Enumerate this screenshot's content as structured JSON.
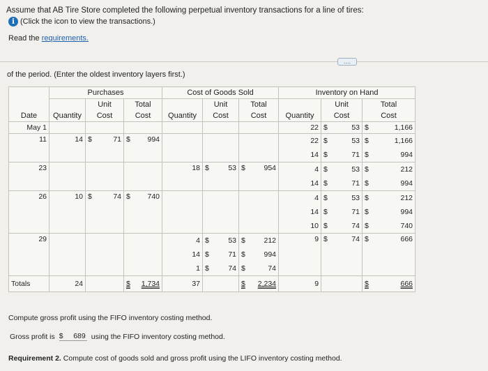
{
  "header": {
    "intro": "Assume that AB Tire Store completed the following perpetual inventory transactions for a line of tires:",
    "icon_link": "(Click the icon to view the transactions.)",
    "read_prefix": "Read the ",
    "requirements_link": "requirements."
  },
  "more_button": "....",
  "instruction": "of the period. (Enter the oldest inventory layers first.)",
  "table": {
    "groups": {
      "purchases": "Purchases",
      "cogs": "Cost of Goods Sold",
      "inventory": "Inventory on Hand"
    },
    "col": {
      "date": "Date",
      "quantity": "Quantity",
      "unit": "Unit",
      "cost": "Cost",
      "total": "Total"
    },
    "rows": {
      "may1": {
        "date": "May 1",
        "inv": [
          {
            "q": "22",
            "u": "53",
            "t": "1,166"
          }
        ]
      },
      "d11": {
        "date": "11",
        "p": {
          "q": "14",
          "u": "71",
          "t": "994"
        },
        "inv": [
          {
            "q": "22",
            "u": "53",
            "t": "1,166"
          },
          {
            "q": "14",
            "u": "71",
            "t": "994"
          }
        ]
      },
      "d23": {
        "date": "23",
        "c": [
          {
            "q": "18",
            "u": "53",
            "t": "954"
          }
        ],
        "inv": [
          {
            "q": "4",
            "u": "53",
            "t": "212"
          },
          {
            "q": "14",
            "u": "71",
            "t": "994"
          }
        ]
      },
      "d26": {
        "date": "26",
        "p": {
          "q": "10",
          "u": "74",
          "t": "740"
        },
        "inv": [
          {
            "q": "4",
            "u": "53",
            "t": "212"
          },
          {
            "q": "14",
            "u": "71",
            "t": "994"
          },
          {
            "q": "10",
            "u": "74",
            "t": "740"
          }
        ]
      },
      "d29": {
        "date": "29",
        "c": [
          {
            "q": "4",
            "u": "53",
            "t": "212"
          },
          {
            "q": "14",
            "u": "71",
            "t": "994"
          },
          {
            "q": "1",
            "u": "74",
            "t": "74"
          }
        ],
        "inv": [
          {
            "q": "9",
            "u": "74",
            "t": "666"
          }
        ]
      }
    },
    "totals": {
      "label": "Totals",
      "p_q": "24",
      "p_t": "1,734",
      "c_q": "37",
      "c_t": "2,234",
      "i_q": "9",
      "i_t": "666"
    },
    "dollar": "$"
  },
  "compute_text": "Compute gross profit using the FIFO inventory costing method.",
  "gross_profit": {
    "prefix": "Gross profit is",
    "dollar": "$",
    "value": "689",
    "suffix": "using the FIFO inventory costing method."
  },
  "req2": {
    "bold": "Requirement 2.",
    "text": " Compute cost of goods sold and gross profit using the LIFO inventory costing method."
  }
}
